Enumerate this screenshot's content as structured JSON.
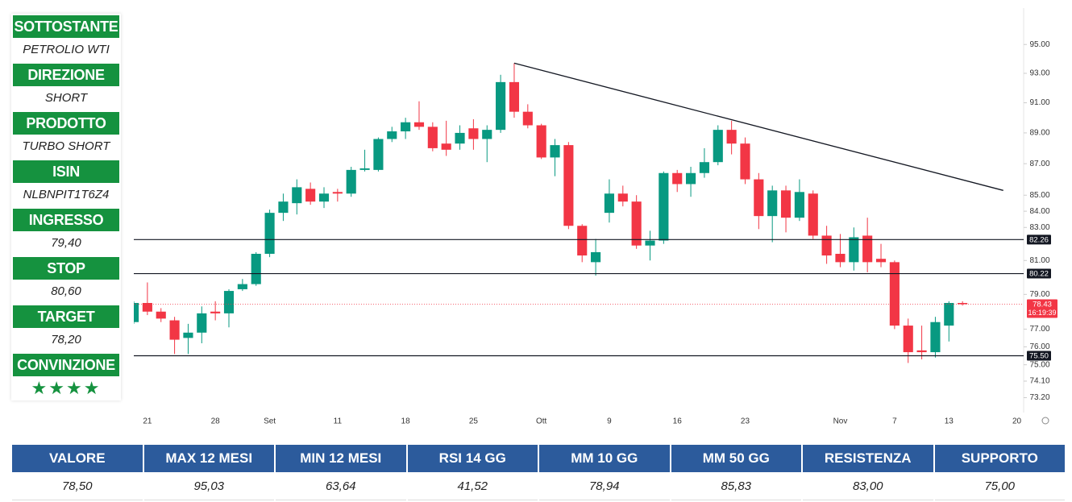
{
  "panel": [
    {
      "label": "SOTTOSTANTE",
      "value": "PETROLIO WTI"
    },
    {
      "label": "DIREZIONE",
      "value": "SHORT"
    },
    {
      "label": "PRODOTTO",
      "value": "TURBO SHORT"
    },
    {
      "label": "ISIN",
      "value": "NLBNPIT1T6Z4"
    },
    {
      "label": "INGRESSO",
      "value": "79,40"
    },
    {
      "label": "STOP",
      "value": "80,60"
    },
    {
      "label": "TARGET",
      "value": "78,20"
    },
    {
      "label": "CONVINZIONE",
      "value": "★★★★"
    }
  ],
  "chart_data": {
    "type": "candlestick",
    "categories": [
      null,
      "21",
      null,
      null,
      null,
      null,
      "28",
      null,
      null,
      null,
      "Set",
      null,
      null,
      null,
      null,
      "11",
      null,
      null,
      null,
      null,
      "18",
      null,
      null,
      null,
      null,
      "25",
      null,
      null,
      null,
      null,
      "Ott",
      null,
      null,
      null,
      null,
      "9",
      null,
      null,
      null,
      null,
      "16",
      null,
      null,
      null,
      null,
      "23",
      null,
      null,
      null,
      null,
      null,
      null,
      "Nov",
      null,
      null,
      null,
      "7",
      null,
      null,
      null,
      "13",
      null,
      null,
      null,
      null,
      "20"
    ],
    "open": [
      77.4,
      78.5,
      78.0,
      77.5,
      76.5,
      76.8,
      78.0,
      77.9,
      79.3,
      79.6,
      81.4,
      83.9,
      84.5,
      85.4,
      84.6,
      85.2,
      85.1,
      86.6,
      86.6,
      88.6,
      89.1,
      89.7,
      89.4,
      88.3,
      88.3,
      89.3,
      88.6,
      89.2,
      92.4,
      90.4,
      89.5,
      87.4,
      88.2,
      83.1,
      80.9,
      83.9,
      85.1,
      84.6,
      81.9,
      82.2,
      86.4,
      85.7,
      86.4,
      87.1,
      89.2,
      88.3,
      86.0,
      83.7,
      85.3,
      83.6,
      85.1,
      82.5,
      81.4,
      80.9,
      82.5,
      81.1,
      80.9,
      77.2,
      75.8,
      75.7,
      77.2,
      78.5,
      null,
      null,
      null,
      null
    ],
    "high": [
      78.6,
      79.7,
      78.2,
      77.7,
      77.3,
      78.3,
      78.6,
      79.3,
      79.9,
      81.5,
      84.1,
      85.1,
      86.0,
      85.8,
      85.5,
      85.4,
      86.8,
      87.9,
      88.7,
      89.4,
      90.0,
      91.1,
      89.7,
      89.8,
      89.5,
      89.9,
      89.5,
      92.9,
      93.7,
      90.9,
      89.6,
      88.6,
      88.4,
      83.2,
      82.3,
      86.0,
      85.6,
      85.0,
      82.8,
      86.5,
      86.6,
      86.8,
      88.0,
      89.5,
      89.8,
      88.7,
      86.4,
      85.6,
      85.6,
      86.0,
      85.3,
      83.1,
      82.6,
      83.0,
      83.6,
      82.0,
      81.0,
      77.6,
      77.2,
      77.7,
      78.6,
      78.6,
      null,
      null,
      null,
      null
    ],
    "low": [
      77.3,
      77.8,
      77.4,
      75.6,
      75.6,
      76.2,
      77.5,
      77.1,
      79.2,
      79.5,
      81.2,
      83.4,
      83.8,
      84.4,
      84.2,
      84.6,
      84.9,
      86.5,
      86.5,
      88.4,
      88.6,
      89.2,
      87.8,
      87.5,
      87.9,
      87.9,
      87.1,
      89.0,
      90.0,
      89.3,
      87.3,
      86.2,
      82.9,
      80.9,
      80.1,
      83.3,
      84.3,
      81.7,
      81.0,
      82.0,
      85.2,
      84.9,
      86.1,
      86.9,
      87.6,
      85.7,
      82.9,
      82.1,
      82.7,
      83.4,
      82.3,
      80.8,
      80.6,
      80.4,
      80.3,
      80.6,
      77.0,
      75.1,
      75.3,
      75.4,
      76.3,
      78.35,
      null,
      null,
      null,
      null
    ],
    "close": [
      78.5,
      78.0,
      77.6,
      76.4,
      76.8,
      77.9,
      77.9,
      79.2,
      79.6,
      81.4,
      83.9,
      84.6,
      85.5,
      84.6,
      85.1,
      85.1,
      86.6,
      86.7,
      88.6,
      89.1,
      89.7,
      89.4,
      88.0,
      87.9,
      89.0,
      88.6,
      89.2,
      92.4,
      90.4,
      89.5,
      87.4,
      88.2,
      83.1,
      81.3,
      81.5,
      85.1,
      84.6,
      81.9,
      82.2,
      86.4,
      85.7,
      86.4,
      87.1,
      89.2,
      88.3,
      86.0,
      83.7,
      85.3,
      83.6,
      85.2,
      82.5,
      81.3,
      80.9,
      82.4,
      80.9,
      80.9,
      77.2,
      75.7,
      75.7,
      77.4,
      78.5,
      78.43,
      null,
      null,
      null,
      null
    ],
    "up_color": "#089981",
    "down_color": "#f23645",
    "log_scale": true,
    "grid": false,
    "ylim": [
      72.4,
      97.3
    ],
    "yticks": [
      {
        "value": 95,
        "label": "95.00"
      },
      {
        "value": 93,
        "label": "93.00"
      },
      {
        "value": 91,
        "label": "91.00"
      },
      {
        "value": 89,
        "label": "89.00"
      },
      {
        "value": 87,
        "label": "87.00"
      },
      {
        "value": 85,
        "label": "85.00"
      },
      {
        "value": 84,
        "label": "84.00"
      },
      {
        "value": 83,
        "label": "83.00"
      },
      {
        "value": 81,
        "label": "81.00"
      },
      {
        "value": 79,
        "label": "79.00"
      },
      {
        "value": 77,
        "label": "77.00"
      },
      {
        "value": 76,
        "label": "76.00"
      },
      {
        "value": 75,
        "label": "75.00"
      },
      {
        "value": 74.1,
        "label": "74.10"
      },
      {
        "value": 73.2,
        "label": "73.20"
      }
    ],
    "levels": [
      {
        "value": 82.26,
        "label": "82.26"
      },
      {
        "value": 80.22,
        "label": "80.22"
      },
      {
        "value": 75.5,
        "label": "75.50"
      }
    ],
    "level_color": "#131722",
    "last_price": {
      "value": 78.43,
      "label": "78.43",
      "timer": "16:19:39"
    },
    "trendline": {
      "x": [
        28,
        64
      ],
      "values": [
        93.7,
        85.3
      ],
      "color": "#131722"
    }
  },
  "table": {
    "headers": [
      "VALORE",
      "MAX 12 MESI",
      "MIN 12 MESI",
      "RSI 14 GG",
      "MM 10 GG",
      "MM 50 GG",
      "RESISTENZA",
      "SUPPORTO"
    ],
    "rows": [
      [
        "78,50",
        "95,03",
        "63,64",
        "41,52",
        "78,94",
        "85,83",
        "83,00",
        "75,00"
      ]
    ]
  }
}
